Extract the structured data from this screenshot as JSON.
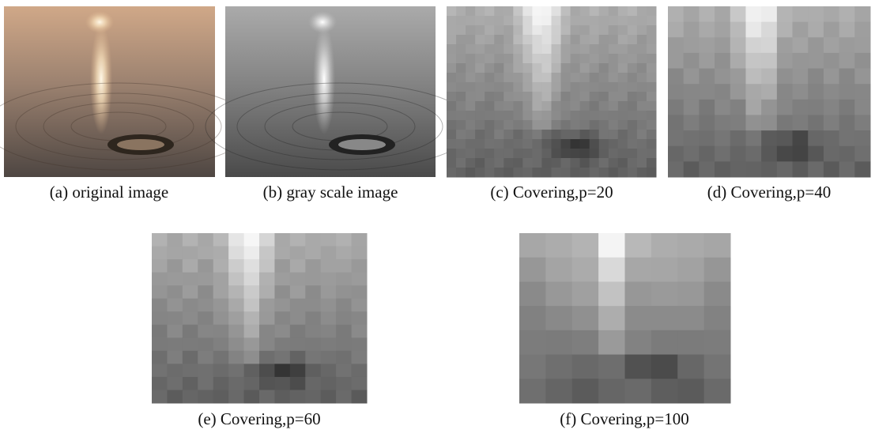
{
  "figure": {
    "panels": [
      {
        "caption": "(a) original image"
      },
      {
        "caption": "(b) gray scale image"
      },
      {
        "caption": "(c) Covering,p=20"
      },
      {
        "caption": "(d) Covering,p=40"
      },
      {
        "caption": "(e) Covering,p=60"
      },
      {
        "caption": "(f) Covering,p=100"
      }
    ]
  }
}
